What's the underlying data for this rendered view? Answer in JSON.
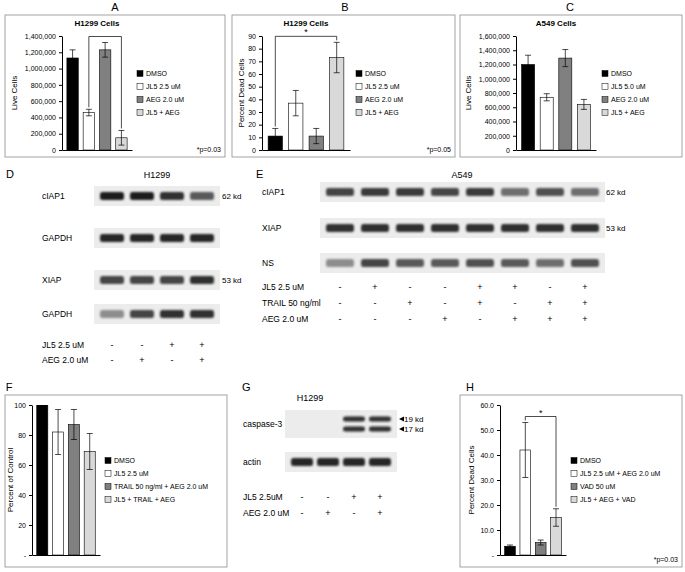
{
  "chart_data": [
    {
      "type": "bar",
      "panel_label": "A",
      "title": "H1299 Cells",
      "y_label": "Live Cells",
      "categories": [
        "DMSO",
        "JL5 2.5 uM",
        "AEG 2.0 uM",
        "JL5 + AEG"
      ],
      "values": [
        1130000,
        460000,
        1230000,
        150000
      ],
      "errors": [
        100000,
        40000,
        90000,
        90000
      ],
      "colors": [
        "#000000",
        "#ffffff",
        "#808080",
        "#d9d9d9"
      ],
      "ylim": [
        0,
        1400000
      ],
      "yticks": [
        0,
        {
          "value": 200000,
          "label": "200,000"
        },
        {
          "value": 400000,
          "label": "400,000"
        },
        {
          "value": 600000,
          "label": "600,000"
        },
        {
          "value": 800000,
          "label": "800,000"
        },
        {
          "value": 1000000,
          "label": "1,000,000"
        },
        {
          "value": 1200000,
          "label": "1,200,000"
        },
        {
          "value": 1400000,
          "label": "1,400,000"
        }
      ],
      "grid": false,
      "legend": "right",
      "tick_labels": "y",
      "significance": {
        "categories": [
          "JL5 2.5 uM",
          "JL5 + AEG"
        ]
      },
      "annotation": "*p=0.03"
    },
    {
      "type": "bar",
      "panel_label": "B",
      "title": "H1299 Cells",
      "y_label": "Percent Dead Cells",
      "categories": [
        "DMSO",
        "JL5 2.5 uM",
        "AEG 2.0 uM",
        "JL5 + AEG"
      ],
      "values": [
        11,
        37,
        11,
        73
      ],
      "errors": [
        6,
        10,
        6,
        12
      ],
      "colors": [
        "#000000",
        "#ffffff",
        "#808080",
        "#d9d9d9"
      ],
      "ylim": [
        0,
        90
      ],
      "yticks": [
        0,
        10,
        20,
        30,
        40,
        50,
        60,
        70,
        80,
        90
      ],
      "grid": false,
      "legend": "right",
      "tick_labels": "y",
      "significance": {
        "categories": [
          "DMSO",
          "JL5 + AEG"
        ],
        "label": "*"
      },
      "annotation": "*p=0.05"
    },
    {
      "type": "bar",
      "panel_label": "C",
      "title": "A549 Cells",
      "y_label": "Live Cells",
      "categories": [
        "DMSO",
        "JL5 5.0 uM",
        "AEG 2.0 uM",
        "JL5 + AEG"
      ],
      "values": [
        1200000,
        740000,
        1290000,
        640000
      ],
      "errors": [
        130000,
        50000,
        120000,
        70000
      ],
      "colors": [
        "#000000",
        "#ffffff",
        "#808080",
        "#d9d9d9"
      ],
      "ylim": [
        0,
        1600000
      ],
      "yticks": [
        0,
        {
          "value": 200000,
          "label": "200,000"
        },
        {
          "value": 400000,
          "label": "400,000"
        },
        {
          "value": 600000,
          "label": "600,000"
        },
        {
          "value": 800000,
          "label": "800,000"
        },
        {
          "value": 1000000,
          "label": "1,000,000"
        },
        {
          "value": 1200000,
          "label": "1,200,000"
        },
        {
          "value": 1400000,
          "label": "1,400,000"
        },
        {
          "value": 1600000,
          "label": "1,600,000"
        }
      ],
      "grid": false,
      "legend": "right",
      "tick_labels": "y"
    },
    {
      "type": "bar",
      "panel_label": "F",
      "y_label": "Percent of Control",
      "categories": [
        "DMSO",
        "JL5 2.5 uM",
        "TRAIL 50 ng/ml + AEG 2.0 uM",
        "JL5 + TRAIL + AEG"
      ],
      "values": [
        100,
        82,
        87,
        69
      ],
      "errors": [
        0,
        15,
        10,
        12
      ],
      "colors": [
        "#000000",
        "#ffffff",
        "#808080",
        "#d9d9d9"
      ],
      "ylim": [
        0,
        100
      ],
      "yticks": [
        {
          "value": 0,
          "label": "-"
        },
        20,
        40,
        60,
        80,
        100
      ],
      "grid": false,
      "legend": "right",
      "tick_labels": "y"
    },
    {
      "type": "bar",
      "panel_label": "H",
      "y_label": "Percent Dead Cells",
      "categories": [
        "DMSO",
        "JL5 2.5 uM + AEG 2.0 uM",
        "VAD 50 uM",
        "JL5 + AEG + VAD"
      ],
      "values": [
        3.5,
        42,
        5,
        15
      ],
      "errors": [
        0.5,
        11,
        1,
        3.5
      ],
      "colors": [
        "#000000",
        "#ffffff",
        "#808080",
        "#d9d9d9"
      ],
      "ylim": [
        0,
        60
      ],
      "yticks": [
        {
          "value": 0,
          "label": "-"
        },
        {
          "value": 10,
          "label": "10.0"
        },
        {
          "value": 20,
          "label": "20.0"
        },
        {
          "value": 30,
          "label": "30.0"
        },
        {
          "value": 40,
          "label": "40.0"
        },
        {
          "value": 50,
          "label": "50.0"
        },
        {
          "value": 60,
          "label": "60.0"
        }
      ],
      "grid": false,
      "legend": "right",
      "tick_labels": "y",
      "significance": {
        "categories": [
          "JL5 2.5 uM + AEG 2.0 uM",
          "JL5 + AEG + VAD"
        ],
        "label": "*"
      },
      "annotation": "*p=0.03"
    }
  ],
  "blots": [
    {
      "panel_label": "D",
      "title": "H1299",
      "rows": [
        {
          "name": "cIAP1",
          "size": "62 kd"
        },
        {
          "name": "GAPDH"
        },
        {
          "name": "XIAP",
          "size": "53 kd"
        },
        {
          "name": "GAPDH"
        }
      ],
      "conditions": [
        {
          "name": "JL5 2.5 uM",
          "signs": [
            "-",
            "-",
            "+",
            "+"
          ]
        },
        {
          "name": "AEG 2.0 uM",
          "signs": [
            "-",
            "+",
            "-",
            "+"
          ]
        }
      ]
    },
    {
      "panel_label": "E",
      "title": "A549",
      "rows": [
        {
          "name": "cIAP1",
          "size": "62 kd"
        },
        {
          "name": "XIAP",
          "size": "53 kd"
        },
        {
          "name": "NS"
        }
      ],
      "conditions": [
        {
          "name": "JL5 2.5 uM",
          "signs": [
            "-",
            "+",
            "-",
            "-",
            "+",
            "+",
            "-",
            "+"
          ]
        },
        {
          "name": "TRAIL 50 ng/ml",
          "signs": [
            "-",
            "-",
            "+",
            "-",
            "+",
            "-",
            "+",
            "+"
          ]
        },
        {
          "name": "AEG 2.0 uM",
          "signs": [
            "-",
            "-",
            "-",
            "+",
            "-",
            "+",
            "+",
            "+"
          ]
        }
      ]
    },
    {
      "panel_label": "G",
      "title": "H1299",
      "rows": [
        {
          "name": "caspase-3",
          "bands": [
            "19 kd",
            "17 kd"
          ]
        },
        {
          "name": "actin"
        }
      ],
      "conditions": [
        {
          "name": "JL5 2.5uM",
          "signs": [
            "-",
            "-",
            "+",
            "+"
          ]
        },
        {
          "name": "AEG 2.0 uM",
          "signs": [
            "-",
            "+",
            "-",
            "+"
          ]
        }
      ]
    }
  ]
}
